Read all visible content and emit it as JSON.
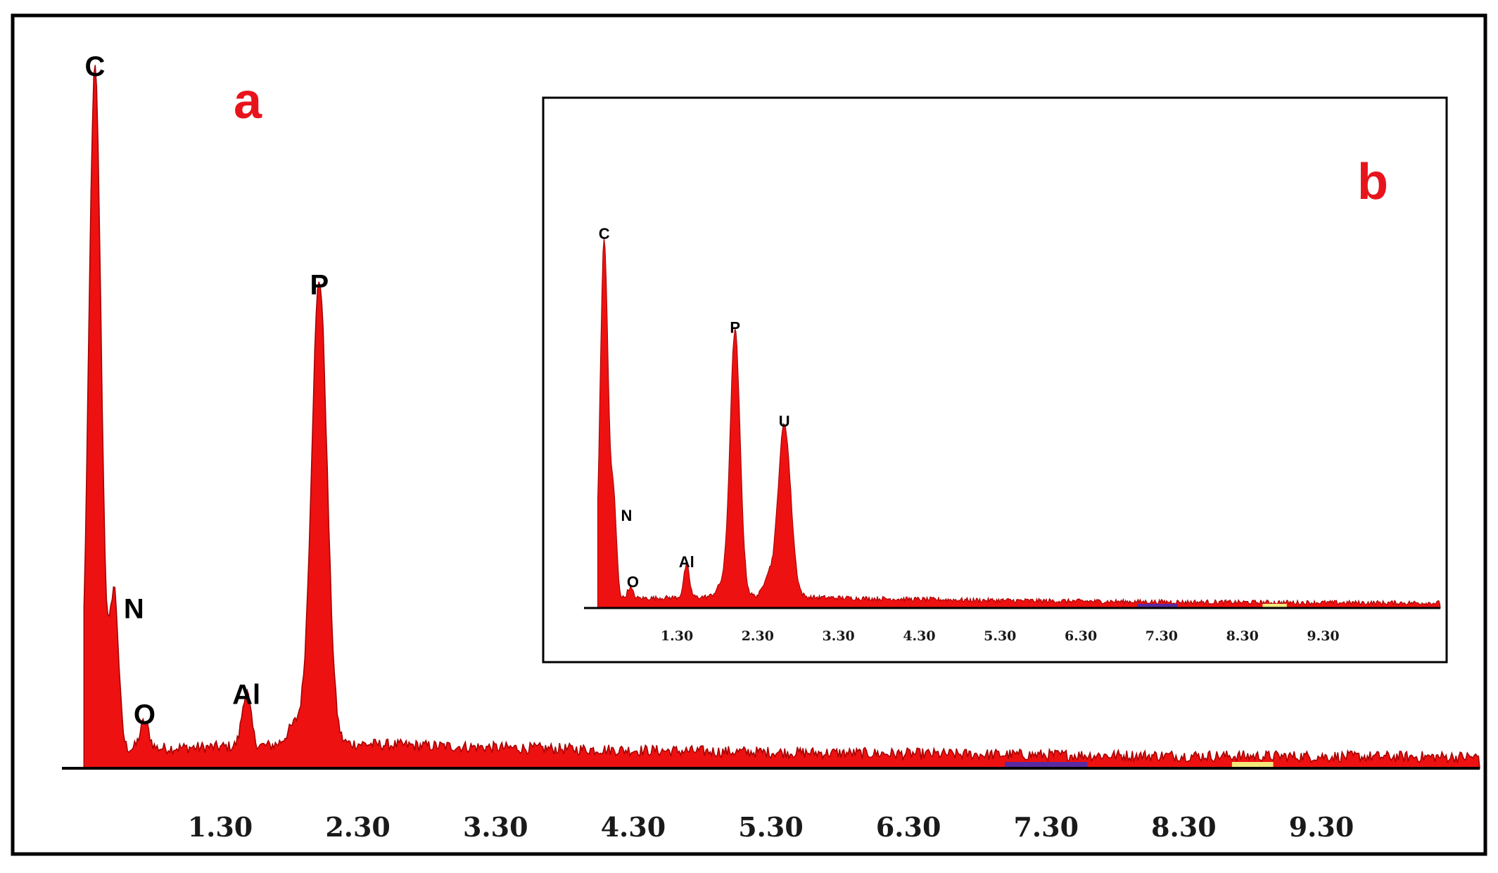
{
  "chart_data": [
    {
      "type": "area",
      "panel_letter": "a",
      "x_ticks": [
        "1.30",
        "2.30",
        "3.30",
        "4.30",
        "5.30",
        "6.30",
        "7.30",
        "8.30",
        "9.30"
      ],
      "xlim": [
        0.15,
        10.45
      ],
      "ylim": [
        0,
        100
      ],
      "grid": false,
      "peaks": [
        {
          "label": "C",
          "x": 0.39,
          "y": 100
        },
        {
          "label": "N",
          "x": 0.53,
          "y": 23
        },
        {
          "label": "O",
          "x": 0.75,
          "y": 4
        },
        {
          "label": "Al",
          "x": 1.49,
          "y": 8
        },
        {
          "label": "P",
          "x": 2.02,
          "y": 68
        }
      ],
      "series_color": "#ee1111",
      "markers": [
        {
          "x_start": 7.0,
          "x_end": 7.6,
          "color": "#5a2aa0"
        },
        {
          "x_start": 8.65,
          "x_end": 8.95,
          "color": "#f2e87a"
        }
      ]
    },
    {
      "type": "area",
      "panel_letter": "b",
      "x_ticks": [
        "1.30",
        "2.30",
        "3.30",
        "4.30",
        "5.30",
        "6.30",
        "7.30",
        "8.30",
        "9.30"
      ],
      "xlim": [
        0.15,
        10.75
      ],
      "ylim": [
        0,
        100
      ],
      "grid": false,
      "peaks": [
        {
          "label": "C",
          "x": 0.4,
          "y": 100
        },
        {
          "label": "N",
          "x": 0.52,
          "y": 25
        },
        {
          "label": "O",
          "x": 0.72,
          "y": 3
        },
        {
          "label": "Al",
          "x": 1.42,
          "y": 9
        },
        {
          "label": "P",
          "x": 2.02,
          "y": 74
        },
        {
          "label": "U",
          "x": 2.63,
          "y": 48
        }
      ],
      "series_color": "#ee1111",
      "markers": [
        {
          "x_start": 7.0,
          "x_end": 7.5,
          "color": "#5a2aa0"
        },
        {
          "x_start": 8.55,
          "x_end": 8.85,
          "color": "#f2e87a"
        }
      ]
    }
  ]
}
